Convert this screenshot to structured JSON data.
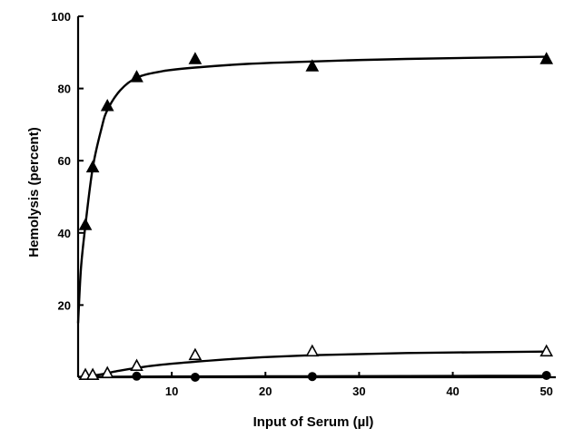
{
  "chart_data": {
    "type": "scatter",
    "title": "",
    "xlabel": "Input of Serum (µl)",
    "ylabel": "Hemolysis (percent)",
    "xlim": [
      0,
      51
    ],
    "ylim": [
      0,
      100
    ],
    "x_ticks": [
      10,
      20,
      30,
      40,
      50
    ],
    "y_ticks": [
      20,
      40,
      60,
      80,
      100
    ],
    "grid": false,
    "legend": "none",
    "series": [
      {
        "marker": "filled-triangle",
        "x": [
          0.78,
          1.56,
          3.12,
          6.25,
          12.5,
          25,
          50
        ],
        "y": [
          42,
          58,
          75,
          83,
          88,
          86,
          88
        ]
      },
      {
        "marker": "open-triangle",
        "x": [
          0.78,
          1.56,
          3.12,
          6.25,
          12.5,
          25,
          50
        ],
        "y": [
          0.5,
          0.5,
          1,
          3,
          6,
          7,
          7
        ]
      },
      {
        "marker": "filled-circle",
        "x": [
          6.25,
          12.5,
          25,
          50
        ],
        "y": [
          0.3,
          0,
          0.2,
          0.5
        ]
      }
    ],
    "curves": [
      {
        "x": [
          0,
          0.3,
          0.78,
          1.56,
          2.5,
          3.12,
          4.5,
          6.25,
          9,
          12.5,
          18,
          25,
          35,
          50
        ],
        "y": [
          15,
          30,
          42,
          58,
          69,
          74,
          79.5,
          83,
          84.8,
          85.8,
          86.8,
          87.5,
          88.2,
          88.8
        ]
      },
      {
        "x": [
          0,
          2,
          4,
          6.25,
          9,
          12.5,
          18,
          25,
          35,
          50
        ],
        "y": [
          0,
          0.6,
          1.6,
          2.6,
          3.5,
          4.3,
          5.3,
          6.1,
          6.7,
          7.1
        ]
      },
      {
        "x": [
          0,
          10,
          20,
          30,
          40,
          50
        ],
        "y": [
          0.1,
          0.2,
          0.25,
          0.3,
          0.35,
          0.4
        ]
      }
    ]
  }
}
